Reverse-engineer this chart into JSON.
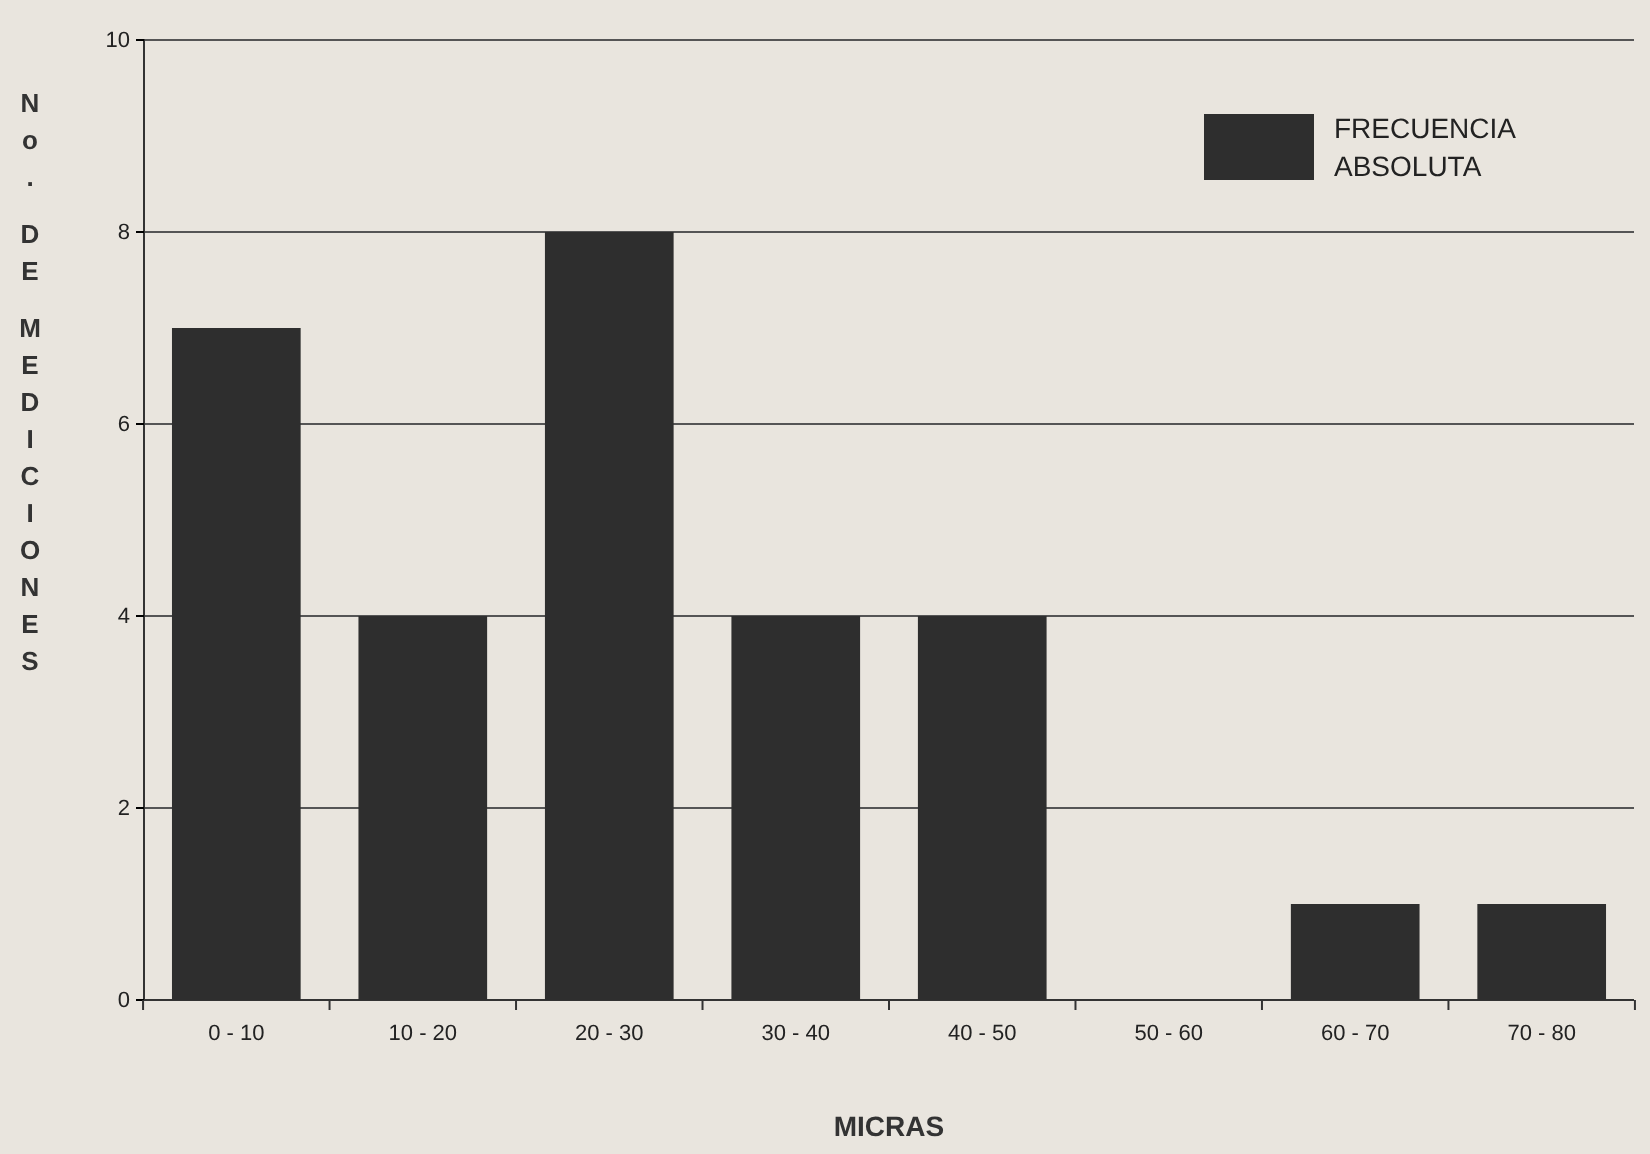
{
  "chart_data": {
    "type": "bar",
    "xlabel": "MICRAS",
    "ylabel": "No. DE MEDICIONES",
    "categories": [
      "0 - 10",
      "10 - 20",
      "20 - 30",
      "30 - 40",
      "40 - 50",
      "50 - 60",
      "60 - 70",
      "70 - 80"
    ],
    "series": [
      {
        "name": "FRECUENCIA ABSOLUTA",
        "color": "#2e2e2e",
        "values": [
          7,
          4,
          8,
          4,
          4,
          0,
          1,
          1
        ]
      }
    ],
    "ylim": [
      0,
      10
    ],
    "yticks": [
      0,
      2,
      4,
      6,
      8,
      10
    ],
    "grid": "y",
    "legend": "top right"
  }
}
